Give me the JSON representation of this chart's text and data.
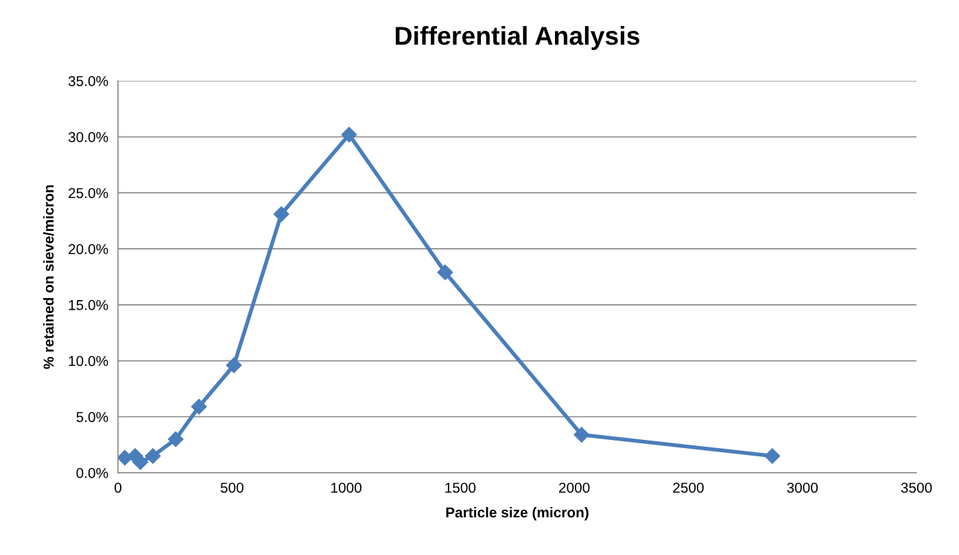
{
  "chart_data": {
    "type": "line",
    "title": "Differential Analysis",
    "xlabel": "Particle size (micron)",
    "ylabel": "% retained on sieve/micron",
    "x": [
      30,
      75,
      98,
      153,
      253,
      355,
      508,
      716,
      1013,
      1434,
      2032,
      2868
    ],
    "series": [
      {
        "color": "#4a7ebb",
        "values": [
          1.35,
          1.5,
          0.95,
          1.5,
          3.0,
          5.9,
          9.6,
          23.1,
          30.2,
          17.9,
          3.4,
          1.5
        ]
      }
    ],
    "xlim": [
      0,
      3500
    ],
    "xticks": [
      0,
      500,
      1000,
      1500,
      2000,
      2500,
      3000,
      3500
    ],
    "ylim": [
      0,
      35
    ],
    "yticks": [
      {
        "value": 0,
        "label": "0.0%"
      },
      {
        "value": 5,
        "label": "5.0%"
      },
      {
        "value": 10,
        "label": "10.0%"
      },
      {
        "value": 15,
        "label": "15.0%"
      },
      {
        "value": 20,
        "label": "20.0%"
      },
      {
        "value": 25,
        "label": "25.0%"
      },
      {
        "value": 30,
        "label": "30.0%"
      },
      {
        "value": 35,
        "label": "35.0%"
      }
    ],
    "grid": "y",
    "marker": "diamond",
    "line_style": "solid"
  }
}
